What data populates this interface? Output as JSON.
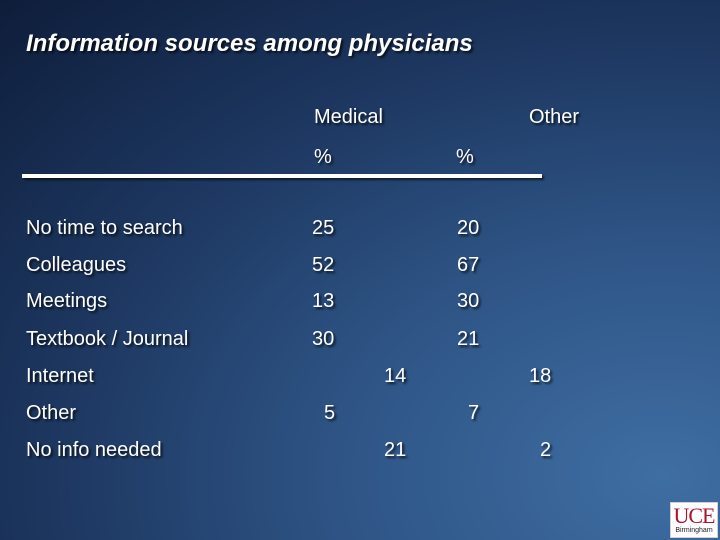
{
  "title": "Information sources among physicians",
  "table": {
    "columns": [
      {
        "name": "Medical",
        "unit": "%"
      },
      {
        "name": "Other",
        "unit": "%"
      }
    ],
    "rows": [
      {
        "label": "No time to search",
        "medical": "25",
        "other": "20"
      },
      {
        "label": "Colleagues",
        "medical": "52",
        "other": "67"
      },
      {
        "label": "Meetings",
        "medical": "13",
        "other": "30"
      },
      {
        "label": "Textbook / Journal",
        "medical": "30",
        "other": "21"
      },
      {
        "label": "Internet",
        "medical": "14",
        "other": "18"
      },
      {
        "label": "Other",
        "medical": "5",
        "other": "7"
      },
      {
        "label": "No info needed",
        "medical": "21",
        "other": "2"
      }
    ]
  },
  "logo": {
    "name": "UCE",
    "sub": "Birmingham",
    "color": "#b0122b"
  },
  "colors": {
    "background": "#1d3760",
    "text": "#ffffff"
  }
}
